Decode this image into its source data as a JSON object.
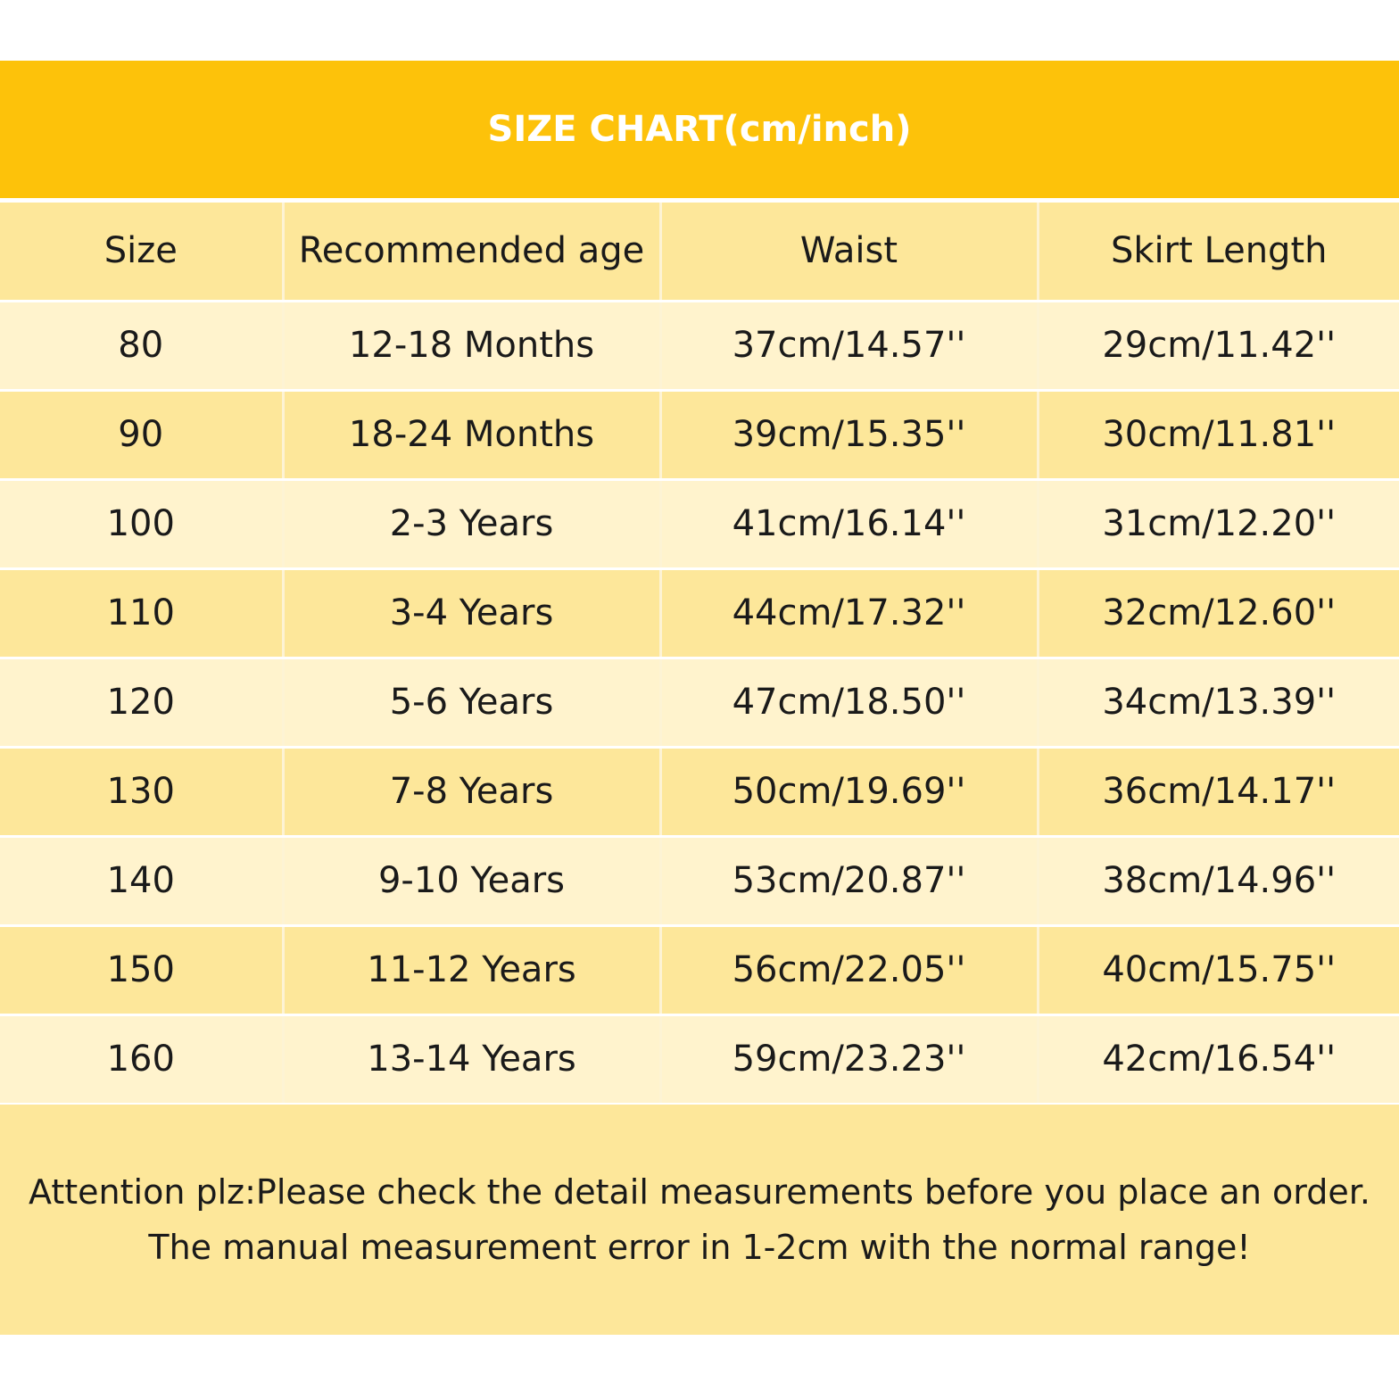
{
  "title": "SIZE CHART(cm/inch)",
  "table": {
    "headers": [
      "Size",
      "Recommended age",
      "Waist",
      "Skirt Length"
    ],
    "rows": [
      [
        "80",
        "12-18 Months",
        "37cm/14.57''",
        "29cm/11.42''"
      ],
      [
        "90",
        "18-24 Months",
        "39cm/15.35''",
        "30cm/11.81''"
      ],
      [
        "100",
        "2-3 Years",
        "41cm/16.14''",
        "31cm/12.20''"
      ],
      [
        "110",
        "3-4 Years",
        "44cm/17.32''",
        "32cm/12.60''"
      ],
      [
        "120",
        "5-6 Years",
        "47cm/18.50''",
        "34cm/13.39''"
      ],
      [
        "130",
        "7-8 Years",
        "50cm/19.69''",
        "36cm/14.17''"
      ],
      [
        "140",
        "9-10 Years",
        "53cm/20.87''",
        "38cm/14.96''"
      ],
      [
        "150",
        "11-12 Years",
        "56cm/22.05''",
        "40cm/15.75''"
      ],
      [
        "160",
        "13-14 Years",
        "59cm/23.23''",
        "42cm/16.54''"
      ]
    ]
  },
  "note": {
    "line1": "Attention plz:Please check the detail measurements before you place an order.",
    "line2": "The manual measurement error in 1-2cm with the normal range!"
  },
  "colors": {
    "title_band": "#fdc20a",
    "header_row": "#fde79a",
    "row_light": "#fff3cd",
    "row_dark": "#fde79a",
    "footer_band": "#fde79a"
  }
}
